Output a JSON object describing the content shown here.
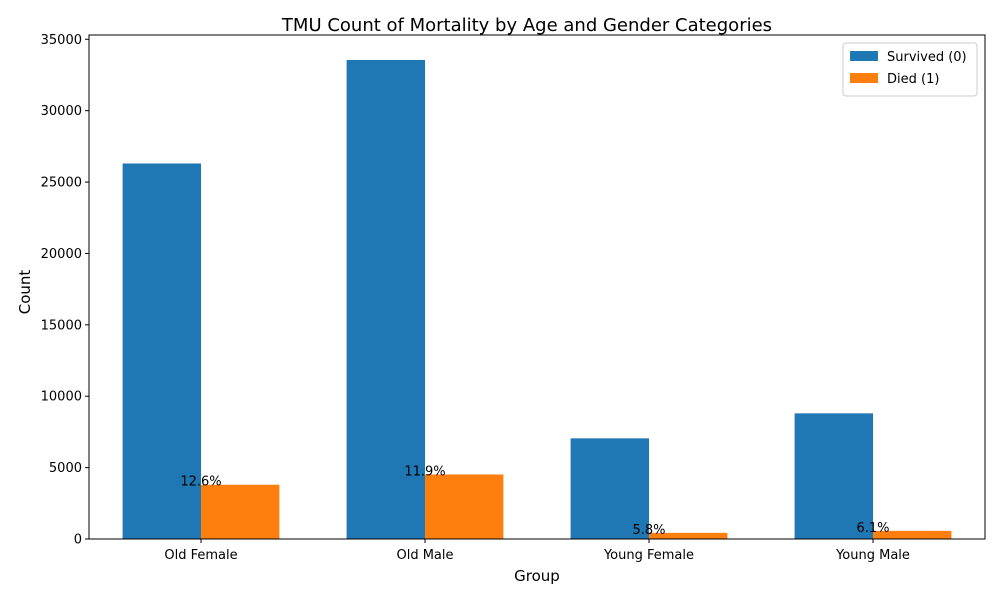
{
  "chart_data": {
    "type": "bar",
    "title": "TMU Count of Mortality by Age and Gender Categories",
    "xlabel": "Group",
    "ylabel": "Count",
    "categories": [
      "Old Female",
      "Old Male",
      "Young Female",
      "Young Male"
    ],
    "series": [
      {
        "name": "Survived (0)",
        "color": "#1f77b4",
        "values": [
          26300,
          33550,
          7050,
          8800
        ]
      },
      {
        "name": "Died (1)",
        "color": "#ff7f0e",
        "values": [
          3800,
          4520,
          430,
          570
        ]
      }
    ],
    "annotations": [
      "12.6%",
      "11.9%",
      "5.8%",
      "6.1%"
    ],
    "ylim": [
      0,
      35300
    ],
    "yticks": [
      0,
      5000,
      10000,
      15000,
      20000,
      25000,
      30000,
      35000
    ],
    "legend_position": "top-right",
    "grid": false
  }
}
